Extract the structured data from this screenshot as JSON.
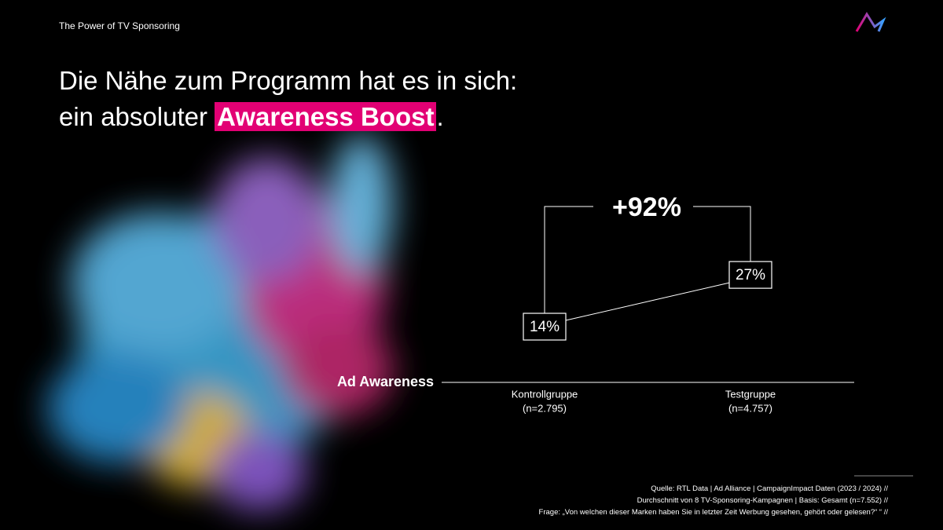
{
  "header": {
    "kicker": "The Power of TV Sponsoring",
    "title_line1": "Die Nähe zum Programm hat es in sich:",
    "title_line2": "ein absoluter",
    "title_highlight": "Awareness Boost",
    "title_end": "."
  },
  "chart_data": {
    "type": "line",
    "axis_label": "Ad Awareness",
    "categories": [
      "Kontrollgruppe",
      "Testgruppe"
    ],
    "sample_sizes": [
      "(n=2.795)",
      "(n=4.757)"
    ],
    "values": [
      14,
      27
    ],
    "value_labels": [
      "14%",
      "27%"
    ],
    "annotation": "+92%",
    "color": "#ffffff"
  },
  "footer": {
    "lines": [
      "Quelle: RTL Data | Ad Alliance | CampaignImpact Daten (2023 / 2024) //",
      "Durchschnitt von 8 TV-Sponsoring-Kampagnen | Basis: Gesamt (n=7.552) //",
      "Frage: „Von welchen dieser Marken haben Sie in letzter Zeit Werbung gesehen, gehört oder gelesen?“ “ //"
    ]
  }
}
